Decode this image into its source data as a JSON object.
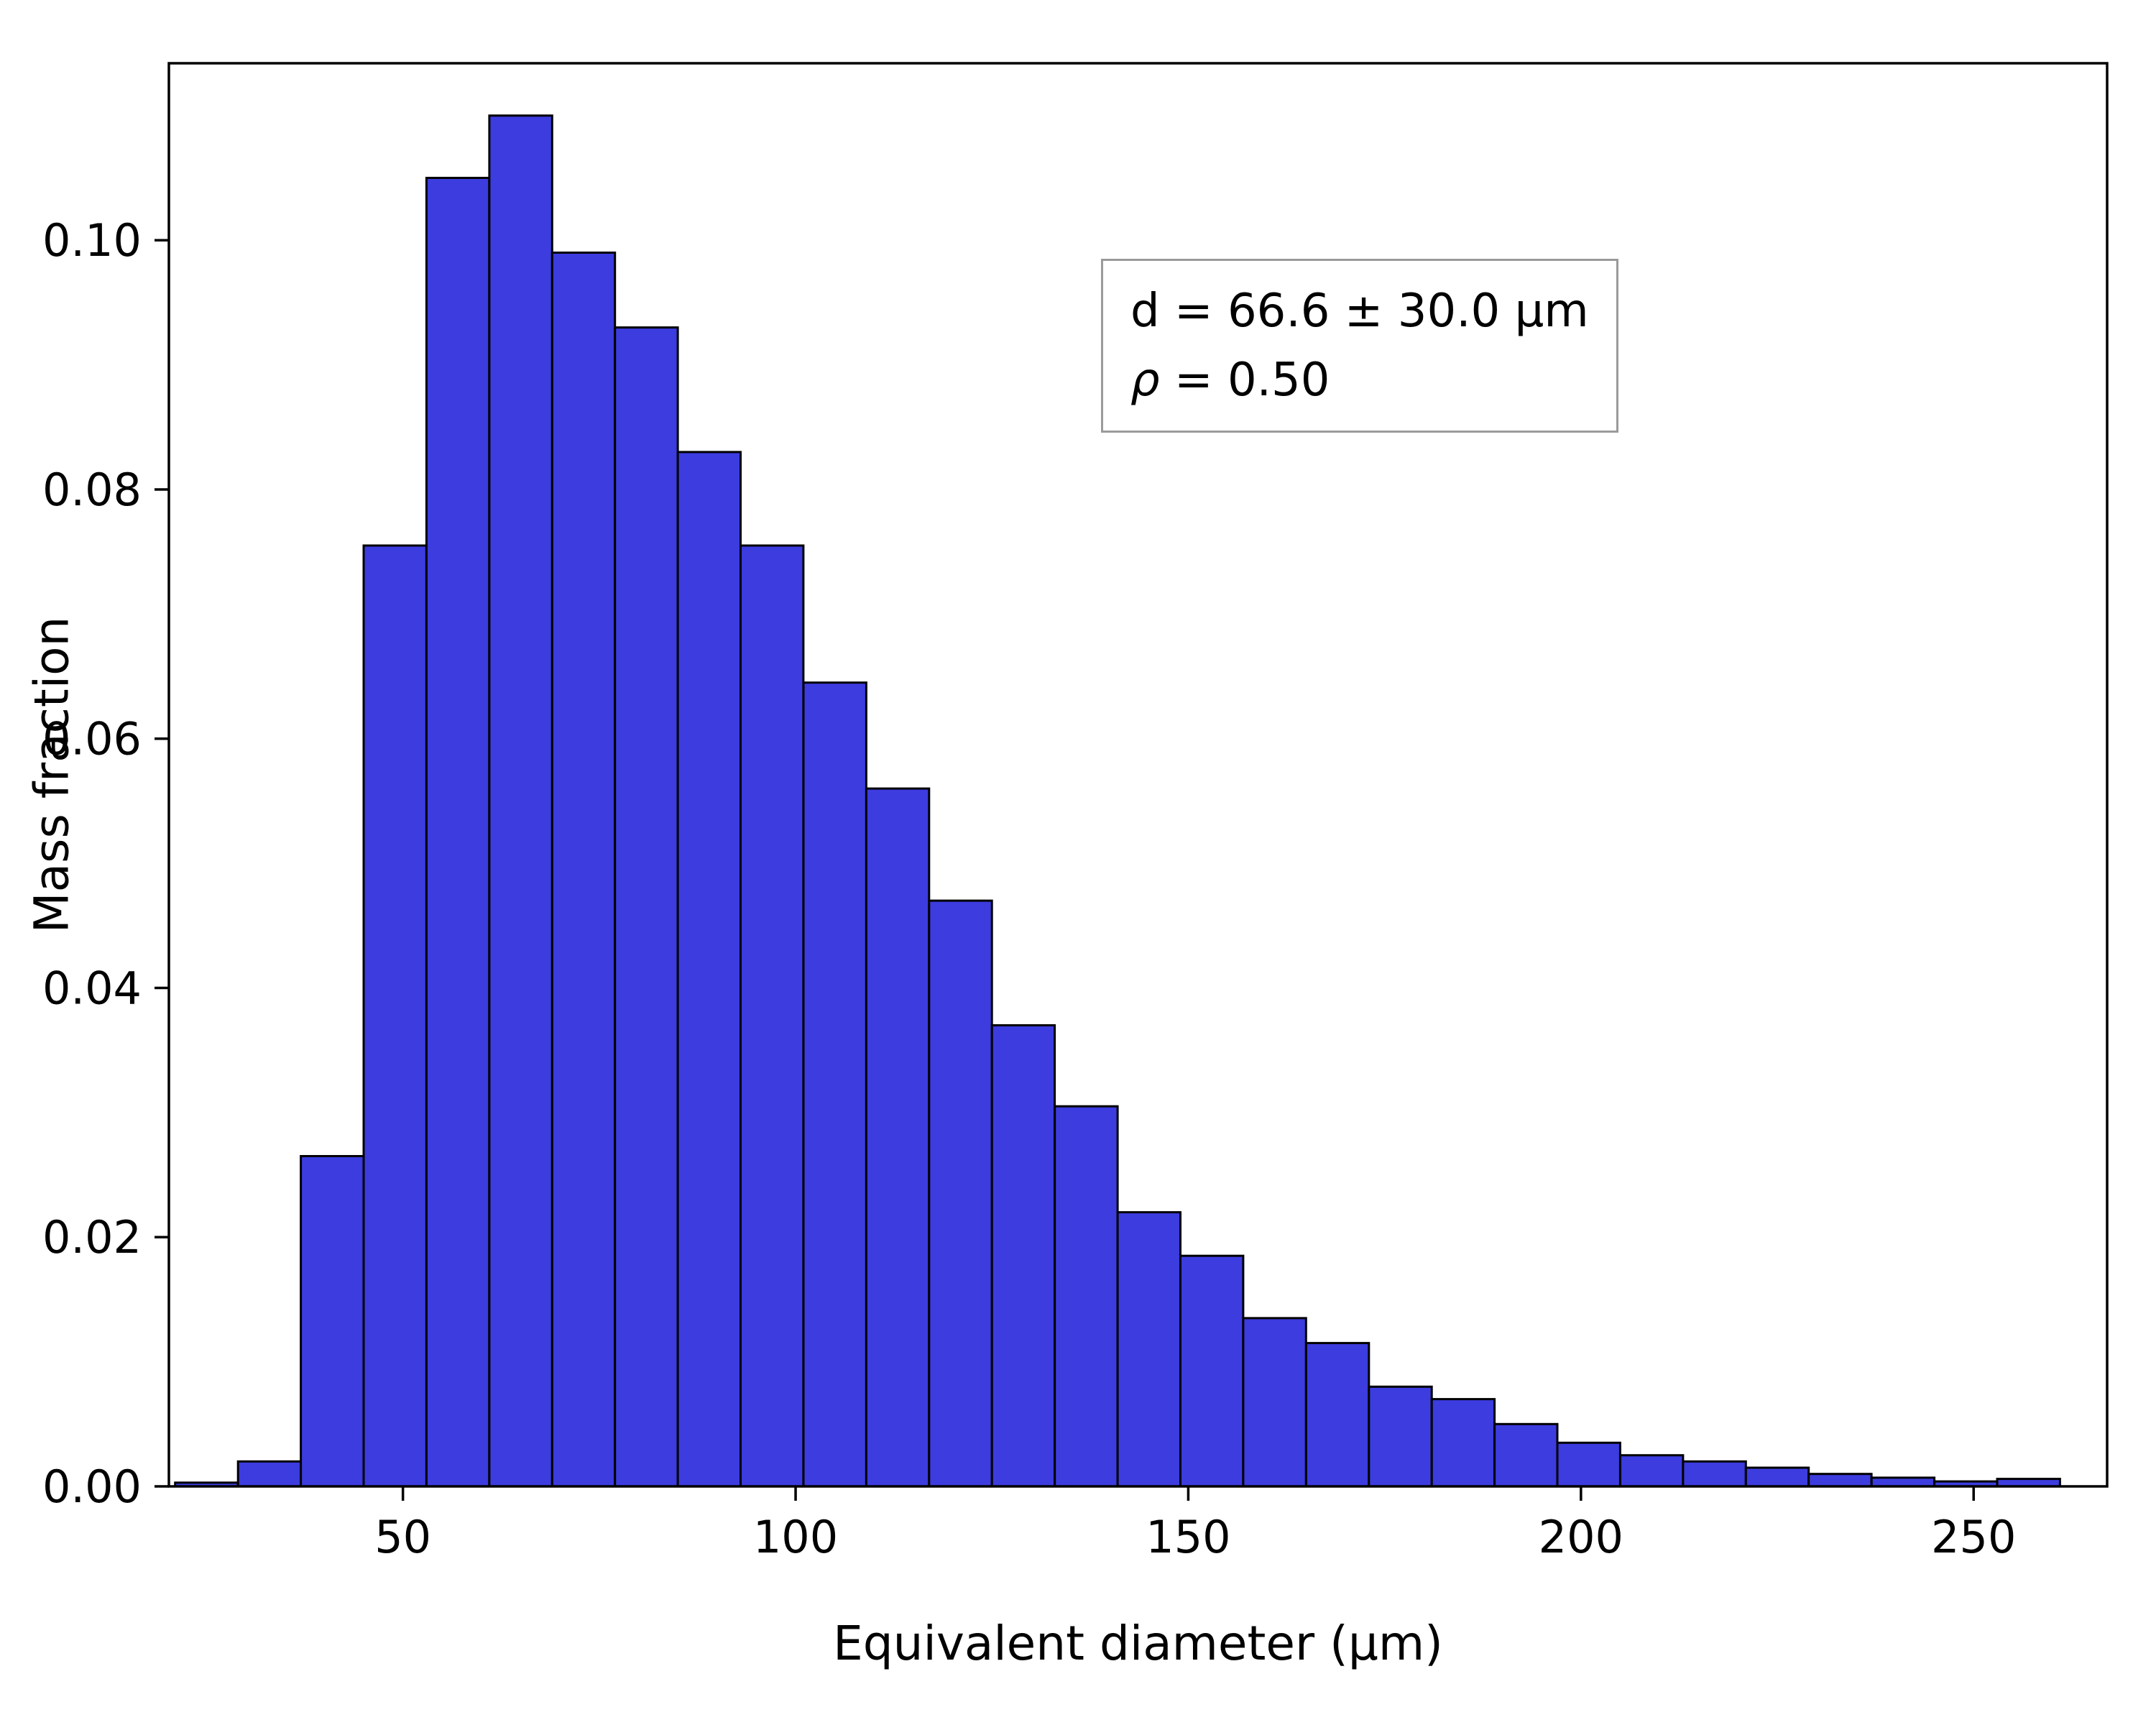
{
  "figure": {
    "background": "#ffffff",
    "bar_color": "#3c3cdf",
    "bar_edge_color": "#000000",
    "axis_color": "#000000",
    "annotation": {
      "line1": "d = 66.6 ± 30.0 μm",
      "rho_symbol": "ρ",
      "line2_rest": " = 0.50"
    }
  },
  "chart_data": {
    "type": "bar",
    "title": "",
    "xlabel": "Equivalent diameter (μm)",
    "ylabel": "Mass fraction",
    "xlim": [
      20.2,
      267
    ],
    "ylim": [
      0,
      0.1142
    ],
    "grid": false,
    "legend": null,
    "x_ticks": [
      50,
      100,
      150,
      200,
      250
    ],
    "x_tick_labels": [
      "50",
      "100",
      "150",
      "200",
      "250"
    ],
    "y_ticks": [
      0.0,
      0.02,
      0.04,
      0.06,
      0.08,
      0.1
    ],
    "y_tick_labels": [
      "0.00",
      "0.02",
      "0.04",
      "0.06",
      "0.08",
      "0.10"
    ],
    "bin_edges": [
      21,
      29,
      37,
      45,
      53,
      61,
      69,
      77,
      85,
      93,
      101,
      109,
      117,
      125,
      133,
      141,
      149,
      157,
      165,
      173,
      181,
      189,
      197,
      205,
      213,
      221,
      229,
      237,
      245,
      253,
      261
    ],
    "values": [
      0.0003,
      0.002,
      0.0265,
      0.0755,
      0.105,
      0.11,
      0.099,
      0.093,
      0.083,
      0.0755,
      0.0645,
      0.056,
      0.047,
      0.037,
      0.0305,
      0.022,
      0.0185,
      0.0135,
      0.0115,
      0.008,
      0.007,
      0.005,
      0.0035,
      0.0025,
      0.002,
      0.0015,
      0.001,
      0.0007,
      0.0004,
      0.0006
    ],
    "annotation_text": [
      "d = 66.6 ± 30.0 μm",
      "ρ = 0.50"
    ]
  }
}
